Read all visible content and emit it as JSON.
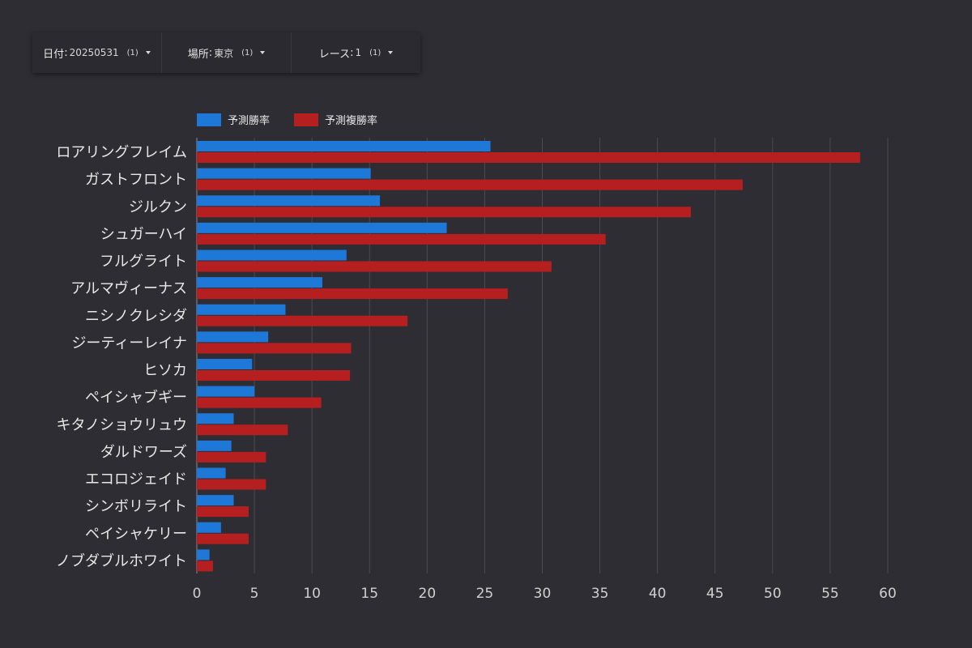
{
  "filters": [
    {
      "label": "日付",
      "value": "20250531",
      "count": "(1)"
    },
    {
      "label": "場所",
      "value": "東京",
      "count": "(1)"
    },
    {
      "label": "レース",
      "value": "1",
      "count": "(1)"
    }
  ],
  "colors": {
    "background": "#2e2d33",
    "win": "#1e78d8",
    "place": "#b51f1f",
    "grid": "#4c4b52"
  },
  "chart_data": {
    "type": "bar",
    "orientation": "horizontal",
    "categories": [
      "ロアリングフレイム",
      "ガストフロント",
      "ジルクン",
      "シュガーハイ",
      "フルグライト",
      "アルマヴィーナス",
      "ニシノクレシダ",
      "ジーティーレイナ",
      "ヒソカ",
      "ペイシャブギー",
      "キタノショウリュウ",
      "ダルドワーズ",
      "エコロジェイド",
      "シンボリライト",
      "ペイシャケリー",
      "ノブダブルホワイト"
    ],
    "series": [
      {
        "name": "予測勝率",
        "color": "#1e78d8",
        "values": [
          25.5,
          15.1,
          15.9,
          21.7,
          13.0,
          10.9,
          7.7,
          6.2,
          4.8,
          5.0,
          3.2,
          3.0,
          2.5,
          3.2,
          2.1,
          1.1
        ]
      },
      {
        "name": "予測複勝率",
        "color": "#b51f1f",
        "values": [
          57.6,
          47.4,
          42.9,
          35.5,
          30.8,
          27.0,
          18.3,
          13.4,
          13.3,
          10.8,
          7.9,
          6.0,
          6.0,
          4.5,
          4.5,
          1.4
        ]
      }
    ],
    "xlim": [
      0,
      60
    ],
    "xticks": [
      0,
      5,
      10,
      15,
      20,
      25,
      30,
      35,
      40,
      45,
      50,
      55,
      60
    ],
    "grid": true,
    "legend_position": "top-left"
  }
}
